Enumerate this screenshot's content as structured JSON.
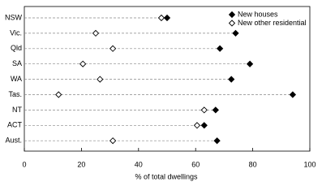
{
  "chart_data": {
    "type": "dot",
    "x_label": "% of total dwellings",
    "categories": [
      "NSW",
      "Vic.",
      "Qld",
      "SA",
      "WA",
      "Tas.",
      "NT",
      "ACT",
      "Aust."
    ],
    "series": [
      {
        "name": "New houses",
        "color": "#000000",
        "marker": "filled-diamond",
        "values": [
          50,
          74,
          68.5,
          79,
          72.5,
          94,
          67,
          63,
          67.5
        ]
      },
      {
        "name": "New other residential",
        "color": "#000000",
        "marker": "open-diamond",
        "values": [
          48,
          25,
          31,
          20.5,
          26.5,
          12,
          63,
          60.5,
          31
        ]
      }
    ],
    "xlim": [
      0,
      100
    ],
    "xticks": [
      0,
      20,
      40,
      60,
      80,
      100
    ],
    "legend": "upper right"
  }
}
